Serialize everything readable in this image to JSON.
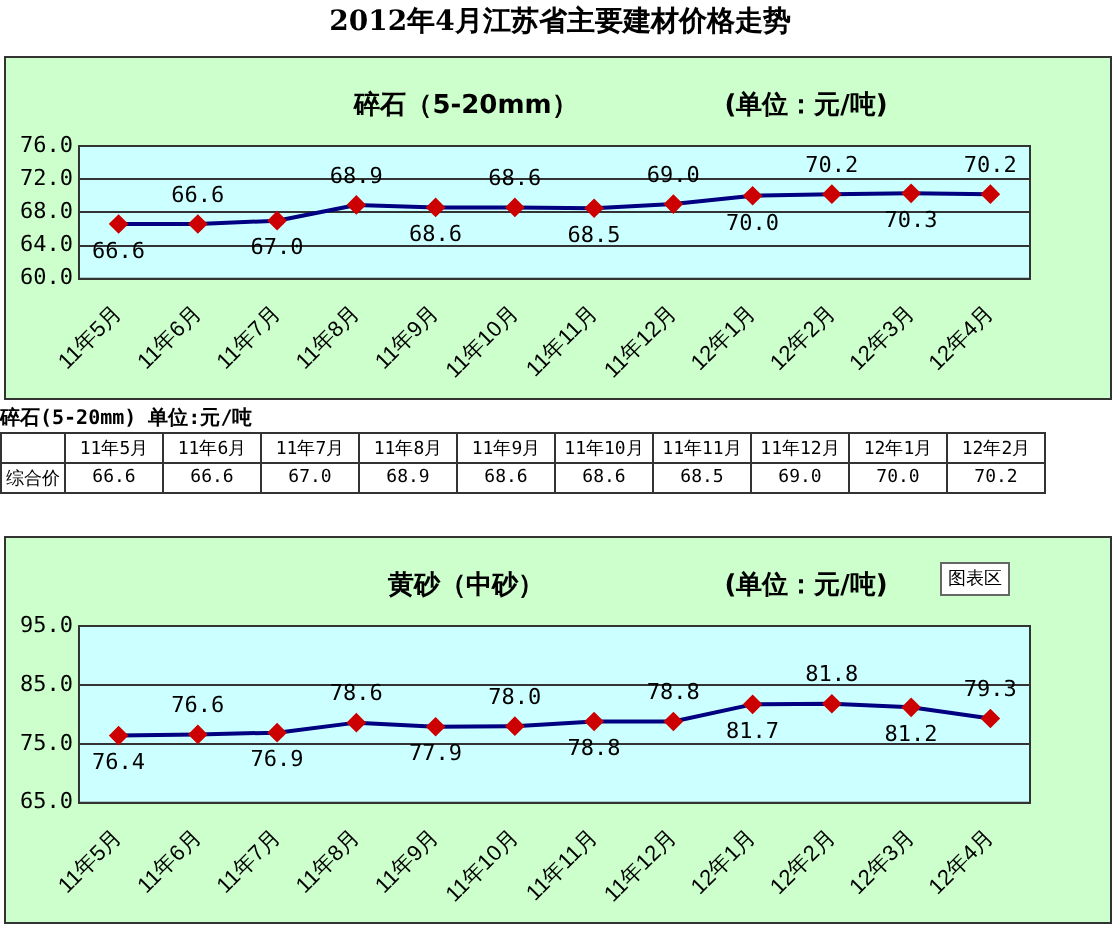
{
  "chart_data": [
    {
      "type": "line",
      "title": "碎石（5-20mm）",
      "subtitle": "(单位：元/吨)",
      "annotations": [
        "2012年4月江苏省主要建材价格走势"
      ],
      "categories": [
        "11年5月",
        "11年6月",
        "11年7月",
        "11年8月",
        "11年9月",
        "11年10月",
        "11年11月",
        "11年12月",
        "12年1月",
        "12年2月",
        "12年3月",
        "12年4月"
      ],
      "series": [
        {
          "color": "#000080",
          "values": [
            66.6,
            66.6,
            67.0,
            68.9,
            68.6,
            68.6,
            68.5,
            69.0,
            70.0,
            70.2,
            70.3,
            70.2
          ],
          "value_labels": [
            "66.6",
            "66.6",
            "67.0",
            "68.9",
            "68.6",
            "68.6",
            "68.5",
            "69.0",
            "70.0",
            "70.2",
            "70.3",
            "70.2"
          ]
        }
      ],
      "ylim": [
        60,
        76
      ],
      "yticks": [
        {
          "value": 60,
          "label": "60.0"
        },
        {
          "value": 64,
          "label": "64.0"
        },
        {
          "value": 68,
          "label": "68.0"
        },
        {
          "value": 72,
          "label": "72.0"
        },
        {
          "value": 76,
          "label": "76.0"
        }
      ],
      "grid": "y",
      "legend": false,
      "marker": "diamond",
      "line_style": "solid"
    },
    {
      "type": "other",
      "title": "碎石(5-20mm) 单位:元/吨",
      "annotations": [
        "综合价"
      ],
      "categories": [
        "11年5月",
        "11年6月",
        "11年7月",
        "11年8月",
        "11年9月",
        "11年10月",
        "11年11月",
        "11年12月",
        "12年1月",
        "12年2月"
      ],
      "value_labels": [
        "66.6",
        "66.6",
        "67.0",
        "68.9",
        "68.6",
        "68.6",
        "68.5",
        "69.0",
        "70.0",
        "70.2"
      ]
    },
    {
      "type": "line",
      "title": "黄砂（中砂）",
      "subtitle": "(单位：元/吨)",
      "annotations": [
        "图表区"
      ],
      "categories": [
        "11年5月",
        "11年6月",
        "11年7月",
        "11年8月",
        "11年9月",
        "11年10月",
        "11年11月",
        "11年12月",
        "12年1月",
        "12年2月",
        "12年3月",
        "12年4月"
      ],
      "series": [
        {
          "color": "#000080",
          "values": [
            76.4,
            76.6,
            76.9,
            78.6,
            77.9,
            78.0,
            78.8,
            78.8,
            81.7,
            81.8,
            81.2,
            79.3
          ],
          "value_labels": [
            "76.4",
            "76.6",
            "76.9",
            "78.6",
            "77.9",
            "78.0",
            "78.8",
            "78.8",
            "81.7",
            "81.8",
            "81.2",
            "79.3"
          ]
        }
      ],
      "ylim": [
        65,
        95
      ],
      "yticks": [
        {
          "value": 65,
          "label": "65.0"
        },
        {
          "value": 75,
          "label": "75.0"
        },
        {
          "value": 85,
          "label": "85.0"
        },
        {
          "value": 95,
          "label": "95.0"
        }
      ],
      "grid": "y",
      "legend": false,
      "marker": "diamond",
      "line_style": "solid"
    }
  ]
}
